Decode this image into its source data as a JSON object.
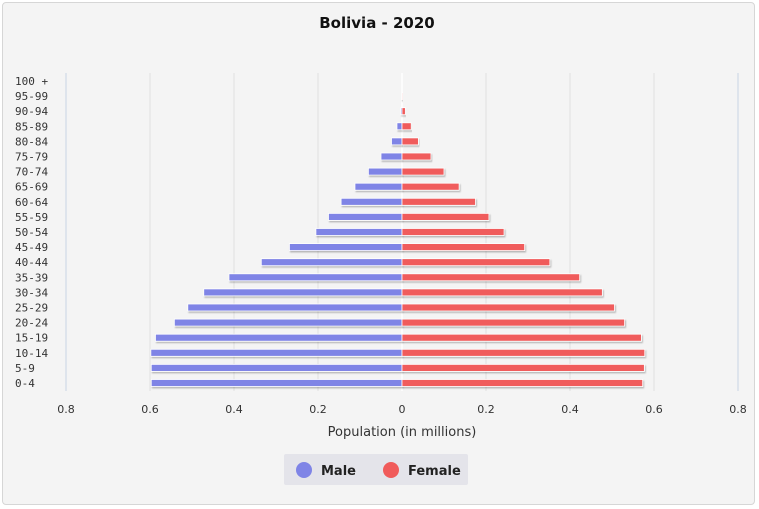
{
  "chart_data": {
    "type": "bar",
    "title": "Bolivia - 2020",
    "xlabel": "Population (in millions)",
    "ylabel": "",
    "xlim": [
      -0.8,
      0.8
    ],
    "x_ticks": [
      "0.8",
      "0.6",
      "0.4",
      "0.2",
      "0",
      "0.2",
      "0.4",
      "0.6",
      "0.8"
    ],
    "grid": true,
    "legend": "bottom-center",
    "categories": [
      "0-4",
      "5-9",
      "10-14",
      "15-19",
      "20-24",
      "25-29",
      "30-34",
      "35-39",
      "40-44",
      "45-49",
      "50-54",
      "55-59",
      "60-64",
      "65-69",
      "70-74",
      "75-79",
      "80-84",
      "85-89",
      "90-94",
      "95-99",
      "100 +"
    ],
    "series": [
      {
        "name": "Male",
        "color": "#7f84e6",
        "values": [
          0.597,
          0.597,
          0.598,
          0.587,
          0.542,
          0.51,
          0.472,
          0.412,
          0.335,
          0.268,
          0.205,
          0.175,
          0.145,
          0.112,
          0.08,
          0.05,
          0.025,
          0.012,
          0.003,
          0.001,
          0.0
        ]
      },
      {
        "name": "Female",
        "color": "#f05b5b",
        "values": [
          0.573,
          0.577,
          0.578,
          0.57,
          0.53,
          0.506,
          0.477,
          0.423,
          0.352,
          0.292,
          0.243,
          0.207,
          0.175,
          0.136,
          0.1,
          0.069,
          0.039,
          0.022,
          0.008,
          0.002,
          0.0
        ]
      }
    ]
  }
}
